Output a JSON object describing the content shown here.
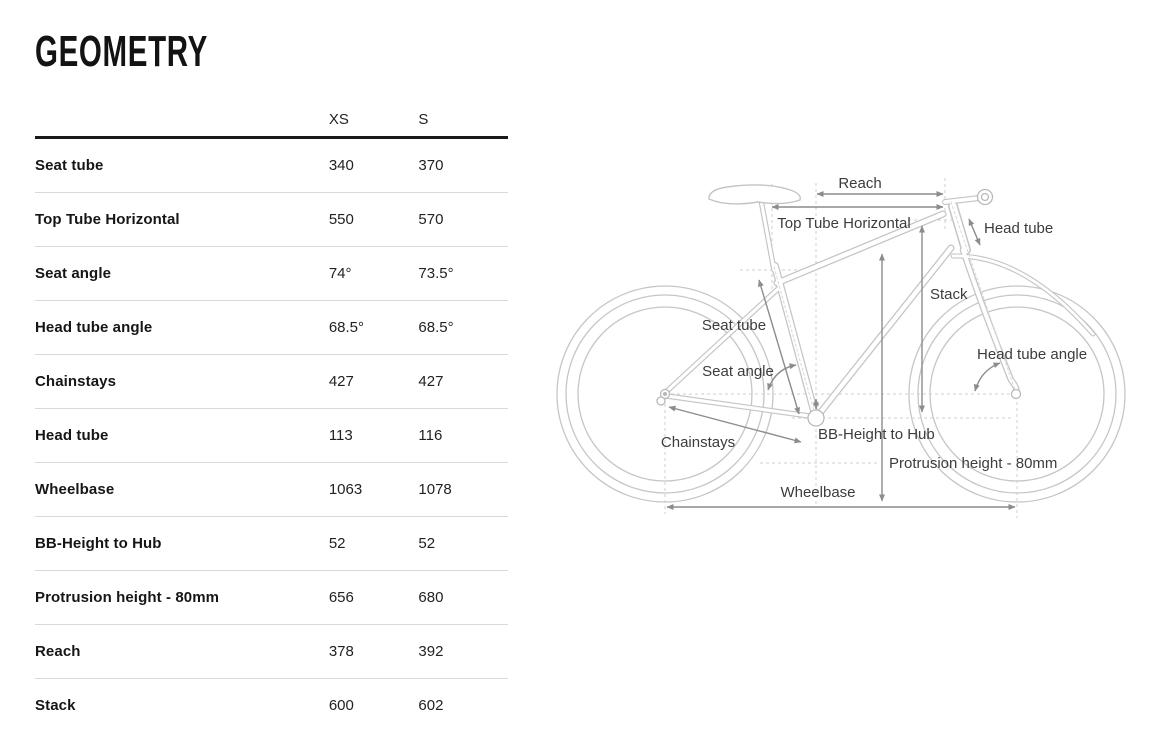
{
  "page": {
    "title": "GEOMETRY"
  },
  "table": {
    "columns": [
      "XS",
      "S"
    ],
    "rows": [
      {
        "label": "Seat tube",
        "xs": "340",
        "s": "370"
      },
      {
        "label": "Top Tube Horizontal",
        "xs": "550",
        "s": "570"
      },
      {
        "label": "Seat angle",
        "xs": "74°",
        "s": "73.5°"
      },
      {
        "label": "Head tube angle",
        "xs": "68.5°",
        "s": "68.5°"
      },
      {
        "label": "Chainstays",
        "xs": "427",
        "s": "427"
      },
      {
        "label": "Head tube",
        "xs": "113",
        "s": "116"
      },
      {
        "label": "Wheelbase",
        "xs": "1063",
        "s": "1078"
      },
      {
        "label": "BB-Height to Hub",
        "xs": "52",
        "s": "52"
      },
      {
        "label": "Protrusion height - 80mm",
        "xs": "656",
        "s": "680"
      },
      {
        "label": "Reach",
        "xs": "378",
        "s": "392"
      },
      {
        "label": "Stack",
        "xs": "600",
        "s": "602"
      }
    ]
  },
  "diagram": {
    "labels": {
      "reach": "Reach",
      "top_tube_horizontal": "Top Tube Horizontal",
      "head_tube": "Head tube",
      "stack": "Stack",
      "seat_tube": "Seat tube",
      "seat_angle": "Seat angle",
      "head_tube_angle": "Head tube angle",
      "chainstays": "Chainstays",
      "bb_height_to_hub": "BB-Height to Hub",
      "protrusion_height": "Protrusion height - 80mm",
      "wheelbase": "Wheelbase"
    }
  },
  "colors": {
    "title_text": "#131313",
    "table_rule_heavy": "#1a1a1a",
    "table_rule_light": "#d9d9d9",
    "bike_outline": "#c4c4c4",
    "dashed_guides": "#cfcfcf",
    "annotation_arrows": "#8c8c8c",
    "annotation_text": "#3c3c3c",
    "background": "#ffffff"
  }
}
